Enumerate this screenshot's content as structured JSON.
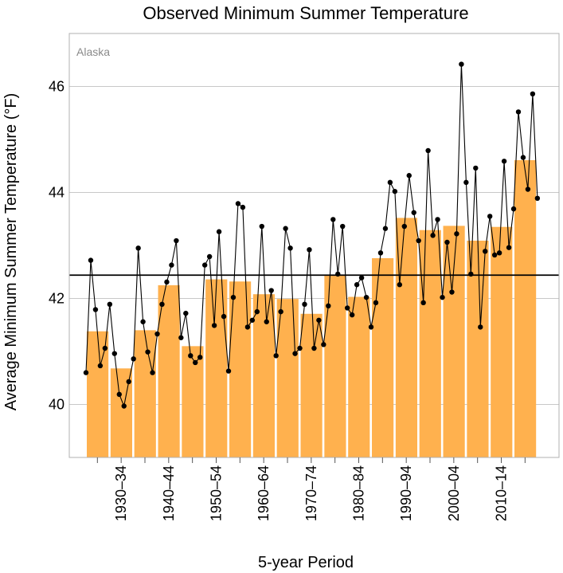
{
  "chart_data": {
    "type": "bar",
    "title": "Observed Minimum Summer Temperature",
    "region_label": "Alaska",
    "xlabel": "5-year Period",
    "ylabel": "Average Minimum Summer Temperature (°F)",
    "ylim": [
      39.0,
      47.0
    ],
    "yticks": [
      40,
      42,
      44,
      46
    ],
    "ytick_labels": [
      "40",
      "42",
      "44",
      "46"
    ],
    "grid": true,
    "first_year": 1925,
    "last_year": 2023,
    "period_labels": [
      "1930–34",
      "1940–44",
      "1950–54",
      "1960–64",
      "1970–74",
      "1980–84",
      "1990–94",
      "2000–04",
      "2010–14"
    ],
    "period_label_years": [
      1930,
      1940,
      1950,
      1960,
      1970,
      1980,
      1990,
      2000,
      2010
    ],
    "periods": [
      {
        "start": 1925,
        "value": 41.38
      },
      {
        "start": 1930,
        "value": 40.68
      },
      {
        "start": 1935,
        "value": 41.4
      },
      {
        "start": 1940,
        "value": 42.25
      },
      {
        "start": 1945,
        "value": 41.1
      },
      {
        "start": 1950,
        "value": 42.36
      },
      {
        "start": 1955,
        "value": 42.32
      },
      {
        "start": 1960,
        "value": 42.08
      },
      {
        "start": 1965,
        "value": 41.99
      },
      {
        "start": 1970,
        "value": 41.71
      },
      {
        "start": 1975,
        "value": 42.44
      },
      {
        "start": 1980,
        "value": 42.03
      },
      {
        "start": 1985,
        "value": 42.76
      },
      {
        "start": 1990,
        "value": 43.52
      },
      {
        "start": 1995,
        "value": 43.29
      },
      {
        "start": 2000,
        "value": 43.37
      },
      {
        "start": 2005,
        "value": 43.09
      },
      {
        "start": 2010,
        "value": 43.35
      },
      {
        "start": 2015,
        "value": 44.61
      }
    ],
    "annual": {
      "years": [
        1925,
        1926,
        1927,
        1928,
        1929,
        1930,
        1931,
        1932,
        1933,
        1934,
        1935,
        1936,
        1937,
        1938,
        1939,
        1940,
        1941,
        1942,
        1943,
        1944,
        1945,
        1946,
        1947,
        1948,
        1949,
        1950,
        1951,
        1952,
        1953,
        1954,
        1955,
        1956,
        1957,
        1958,
        1959,
        1960,
        1961,
        1962,
        1963,
        1964,
        1965,
        1966,
        1967,
        1968,
        1969,
        1970,
        1971,
        1972,
        1973,
        1974,
        1975,
        1976,
        1977,
        1978,
        1979,
        1980,
        1981,
        1982,
        1983,
        1984,
        1985,
        1986,
        1987,
        1988,
        1989,
        1990,
        1991,
        1992,
        1993,
        1994,
        1995,
        1996,
        1997,
        1998,
        1999,
        2000,
        2001,
        2002,
        2003,
        2004,
        2005,
        2006,
        2007,
        2008,
        2009,
        2010,
        2011,
        2012,
        2013,
        2014,
        2015,
        2016,
        2017,
        2018,
        2019,
        2020,
        2021,
        2022,
        2023
      ],
      "values": [
        40.6,
        42.72,
        41.79,
        40.73,
        41.06,
        41.89,
        40.96,
        40.19,
        39.97,
        40.43,
        40.86,
        42.95,
        41.56,
        40.99,
        40.6,
        41.33,
        41.89,
        42.31,
        42.63,
        43.09,
        41.26,
        41.72,
        40.92,
        40.79,
        40.89,
        42.63,
        42.79,
        41.49,
        43.26,
        41.66,
        40.63,
        42.02,
        43.79,
        43.72,
        41.46,
        41.59,
        41.75,
        43.36,
        41.56,
        42.15,
        40.92,
        41.75,
        43.32,
        42.95,
        40.96,
        41.06,
        41.89,
        42.92,
        41.06,
        41.59,
        41.13,
        41.86,
        43.49,
        42.46,
        43.36,
        41.82,
        41.69,
        42.26,
        42.39,
        42.02,
        41.46,
        41.92,
        42.86,
        43.32,
        44.19,
        44.02,
        42.26,
        43.36,
        44.32,
        43.62,
        43.09,
        41.92,
        44.79,
        43.19,
        43.49,
        42.02,
        43.06,
        42.12,
        43.22,
        46.42,
        44.19,
        42.46,
        44.46,
        41.46,
        42.89,
        43.55,
        42.82,
        42.86,
        44.59,
        42.96,
        43.69,
        45.52,
        44.66,
        44.06,
        45.86,
        43.89,
        null,
        null,
        null
      ]
    },
    "long_term_mean": 42.44,
    "colors": {
      "bar": "#FFB14E",
      "line": "#000000",
      "mean_line": "#000000",
      "grid": "#c8c8c8",
      "frame": "#b0b0b0"
    }
  }
}
